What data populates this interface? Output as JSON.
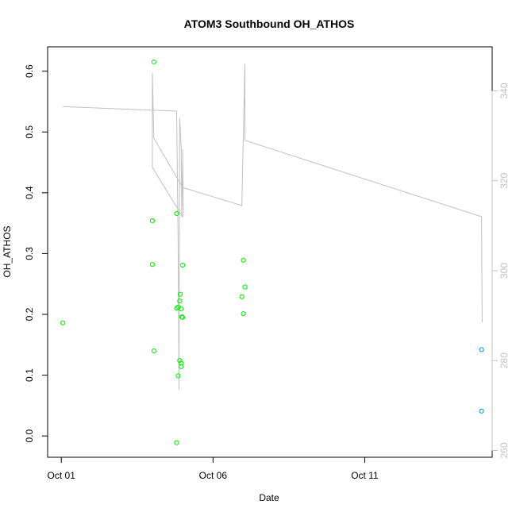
{
  "chart_data": {
    "type": "scatter",
    "title": "ATOM3 Southbound OH_ATHOS",
    "xlabel": "Date",
    "ylabel": "OH_ATHOS",
    "x_ticks": [
      {
        "label": "Oct 01",
        "value": 0
      },
      {
        "label": "Oct 06",
        "value": 5
      },
      {
        "label": "Oct 11",
        "value": 10
      }
    ],
    "xlim": [
      -0.45,
      14.2
    ],
    "ylim": [
      -0.035,
      0.64
    ],
    "y_ticks": [
      "0.0",
      "0.1",
      "0.2",
      "0.3",
      "0.4",
      "0.5",
      "0.6"
    ],
    "y2_ticks": [
      "260",
      "280",
      "300",
      "320",
      "340"
    ],
    "y2lim": [
      258.5,
      349.8
    ],
    "grid": false,
    "colors": {
      "green": "#00ee00",
      "blue": "#0099dd",
      "line": "#c0c0c0"
    },
    "series": [
      {
        "color_key": "green",
        "points": [
          [
            0.05,
            0.186
          ],
          [
            3.05,
            0.615
          ],
          [
            3.0,
            0.354
          ],
          [
            3.0,
            0.282
          ],
          [
            3.05,
            0.14
          ],
          [
            3.8,
            0.366
          ],
          [
            3.8,
            0.21
          ],
          [
            3.85,
            0.212
          ],
          [
            3.8,
            -0.011
          ],
          [
            3.85,
            0.099
          ],
          [
            3.9,
            0.124
          ],
          [
            3.95,
            0.12
          ],
          [
            3.95,
            0.114
          ],
          [
            3.92,
            0.233
          ],
          [
            3.9,
            0.222
          ],
          [
            3.95,
            0.209
          ],
          [
            3.97,
            0.196
          ],
          [
            4.0,
            0.195
          ],
          [
            4.0,
            0.281
          ],
          [
            6.0,
            0.201
          ],
          [
            5.95,
            0.229
          ],
          [
            6.05,
            0.245
          ],
          [
            6.0,
            0.289
          ]
        ]
      },
      {
        "color_key": "blue",
        "points": [
          [
            13.85,
            0.142
          ],
          [
            13.85,
            0.041
          ]
        ]
      }
    ],
    "secondary_line": {
      "points": [
        [
          0.05,
          336.5
        ],
        [
          3.8,
          335.5
        ],
        [
          3.85,
          306
        ],
        [
          3.88,
          273.5
        ],
        [
          3.9,
          334
        ],
        [
          3.95,
          327.5
        ],
        [
          3.97,
          312
        ],
        [
          4.0,
          324.5
        ],
        [
          4.0,
          327
        ],
        [
          4.02,
          313
        ],
        [
          4.0,
          312
        ],
        [
          3.0,
          323
        ],
        [
          3.0,
          344
        ],
        [
          3.05,
          329.5
        ],
        [
          4.0,
          318.5
        ],
        [
          5.95,
          314.5
        ],
        [
          6.05,
          346
        ],
        [
          6.05,
          329
        ],
        [
          13.85,
          312
        ],
        [
          13.87,
          288.5
        ]
      ]
    }
  }
}
